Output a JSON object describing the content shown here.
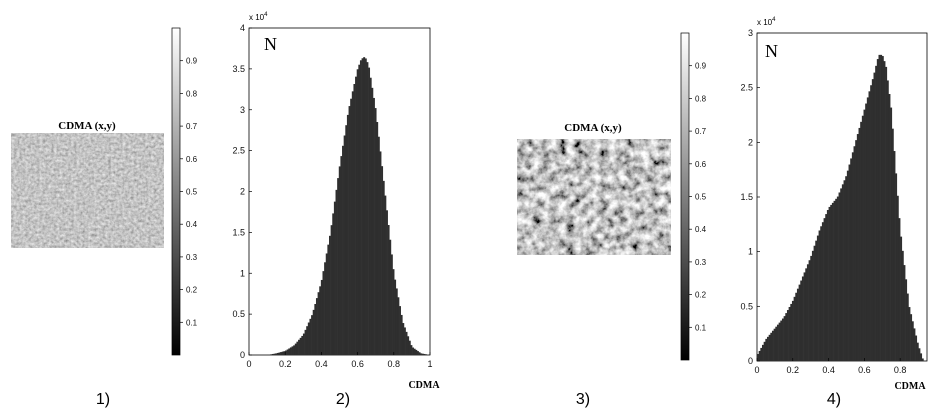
{
  "panels": [
    {
      "type": "image",
      "number_label": "1)",
      "title": "CDMA (x,y)",
      "colorbar_ticks": [
        "0.1",
        "0.2",
        "0.3",
        "0.4",
        "0.5",
        "0.6",
        "0.7",
        "0.8",
        "0.9"
      ]
    },
    {
      "type": "histogram",
      "number_label": "2)",
      "corner_label": "N",
      "exponent_label": "x 10",
      "exponent_power": "4",
      "xlabel": "CDMA",
      "x_ticks": [
        "0",
        "0.2",
        "0.4",
        "0.6",
        "0.8",
        "1"
      ],
      "y_ticks": [
        "0",
        "0.5",
        "1",
        "1.5",
        "2",
        "2.5",
        "3",
        "3.5",
        "4"
      ]
    },
    {
      "type": "image",
      "number_label": "3)",
      "title": "CDMA (x,y)",
      "colorbar_ticks": [
        "0.1",
        "0.2",
        "0.3",
        "0.4",
        "0.5",
        "0.6",
        "0.7",
        "0.8",
        "0.9"
      ]
    },
    {
      "type": "histogram",
      "number_label": "4)",
      "corner_label": "N",
      "exponent_label": "x 10",
      "exponent_power": "4",
      "xlabel": "CDMA",
      "x_ticks": [
        "0",
        "0.2",
        "0.4",
        "0.6",
        "0.8"
      ],
      "y_ticks": [
        "0",
        "0.5",
        "1",
        "1.5",
        "2",
        "2.5",
        "3"
      ]
    }
  ],
  "chart_data": [
    {
      "type": "bar",
      "xlabel": "CDMA",
      "ylabel": "N",
      "y_scale_note": "x 10^4",
      "xlim": [
        0,
        1
      ],
      "ylim": [
        0,
        4
      ],
      "x": [
        0.1,
        0.15,
        0.2,
        0.25,
        0.3,
        0.35,
        0.4,
        0.45,
        0.5,
        0.55,
        0.6,
        0.62,
        0.64,
        0.66,
        0.7,
        0.75,
        0.8,
        0.85,
        0.9,
        0.95,
        1.0
      ],
      "values": [
        0,
        0.02,
        0.05,
        0.12,
        0.25,
        0.5,
        0.9,
        1.5,
        2.3,
        3.0,
        3.5,
        3.62,
        3.65,
        3.55,
        3.0,
        2.0,
        1.0,
        0.4,
        0.1,
        0.02,
        0
      ]
    },
    {
      "type": "bar",
      "xlabel": "CDMA",
      "ylabel": "N",
      "y_scale_note": "x 10^4",
      "xlim": [
        0,
        0.95
      ],
      "ylim": [
        0,
        3
      ],
      "x": [
        0.0,
        0.05,
        0.1,
        0.15,
        0.2,
        0.25,
        0.3,
        0.35,
        0.4,
        0.45,
        0.5,
        0.55,
        0.6,
        0.65,
        0.68,
        0.7,
        0.72,
        0.75,
        0.8,
        0.85,
        0.9,
        0.93
      ],
      "values": [
        0.05,
        0.2,
        0.3,
        0.4,
        0.55,
        0.75,
        0.95,
        1.2,
        1.4,
        1.5,
        1.7,
        2.0,
        2.3,
        2.6,
        2.8,
        2.8,
        2.7,
        2.3,
        1.2,
        0.5,
        0.15,
        0
      ]
    }
  ],
  "colors": {
    "bar": "#2f2f2f",
    "axis": "#000000",
    "tick_text": "#111111"
  }
}
